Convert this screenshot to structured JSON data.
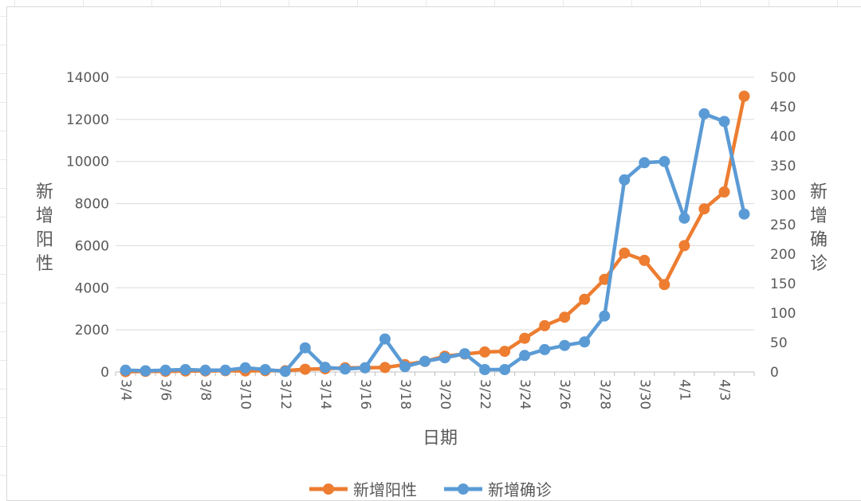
{
  "chart_data": {
    "type": "line",
    "xlabel": "日期",
    "ylabel_left": "新增阳性",
    "ylabel_right": "新增确诊",
    "categories": [
      "3/4",
      "3/5",
      "3/6",
      "3/7",
      "3/8",
      "3/9",
      "3/10",
      "3/11",
      "3/12",
      "3/13",
      "3/14",
      "3/15",
      "3/16",
      "3/17",
      "3/18",
      "3/19",
      "3/20",
      "3/21",
      "3/22",
      "3/23",
      "3/24",
      "3/25",
      "3/26",
      "3/27",
      "3/28",
      "3/29",
      "3/30",
      "3/31",
      "4/1",
      "4/2",
      "4/3",
      "4/4"
    ],
    "tick_labels": [
      "3/4",
      "3/6",
      "3/8",
      "3/10",
      "3/12",
      "3/14",
      "3/16",
      "3/18",
      "3/20",
      "3/22",
      "3/24",
      "3/26",
      "3/28",
      "3/30",
      "4/1",
      "4/3"
    ],
    "y_left_ticks": [
      "0",
      "2000",
      "4000",
      "6000",
      "8000",
      "10000",
      "12000",
      "14000"
    ],
    "y_right_ticks": [
      "0",
      "50",
      "100",
      "150",
      "200",
      "250",
      "300",
      "350",
      "400",
      "450",
      "500"
    ],
    "y_left_lim": [
      0,
      14000
    ],
    "y_right_lim": [
      0,
      500
    ],
    "series": [
      {
        "name": "新增阳性",
        "axis": "left",
        "color": "#ed7d31",
        "values": [
          16,
          28,
          29,
          45,
          50,
          60,
          50,
          60,
          60,
          130,
          150,
          200,
          200,
          210,
          350,
          500,
          750,
          850,
          950,
          980,
          1600,
          2200,
          2600,
          3450,
          4400,
          5650,
          5300,
          4150,
          6000,
          7750,
          8550,
          13100
        ]
      },
      {
        "name": "新增确诊",
        "axis": "right",
        "color": "#5b9bd5",
        "values": [
          3,
          2,
          3,
          4,
          3,
          3,
          7,
          4,
          1,
          41,
          8,
          5,
          7,
          56,
          9,
          18,
          24,
          31,
          4,
          4,
          28,
          38,
          45,
          51,
          95,
          326,
          355,
          357,
          261,
          438,
          425,
          268
        ]
      }
    ],
    "grid": "horizontal",
    "legend_position": "bottom"
  }
}
